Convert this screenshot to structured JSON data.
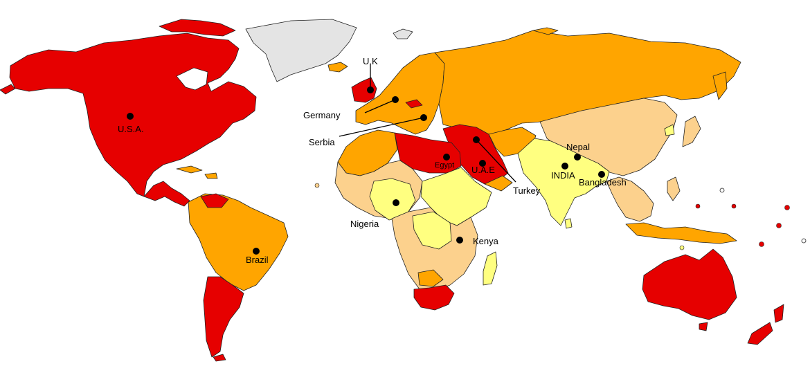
{
  "colors": {
    "red": "#e60000",
    "orange": "#ffa500",
    "light_orange": "#fcd18d",
    "yellow": "#ffff80",
    "grey": "#e4e4e4"
  },
  "labels": {
    "usa": "U.S.A.",
    "uk": "U.K",
    "germany": "Germany",
    "serbia": "Serbia",
    "egypt": "Egypt",
    "uae": "U.A.E",
    "turkey": "Turkey",
    "nepal": "Nepal",
    "india": "INDIA",
    "bangladesh": "Bangladesh",
    "nigeria": "Nigeria",
    "kenya": "Kenya",
    "brazil": "Brazil"
  }
}
